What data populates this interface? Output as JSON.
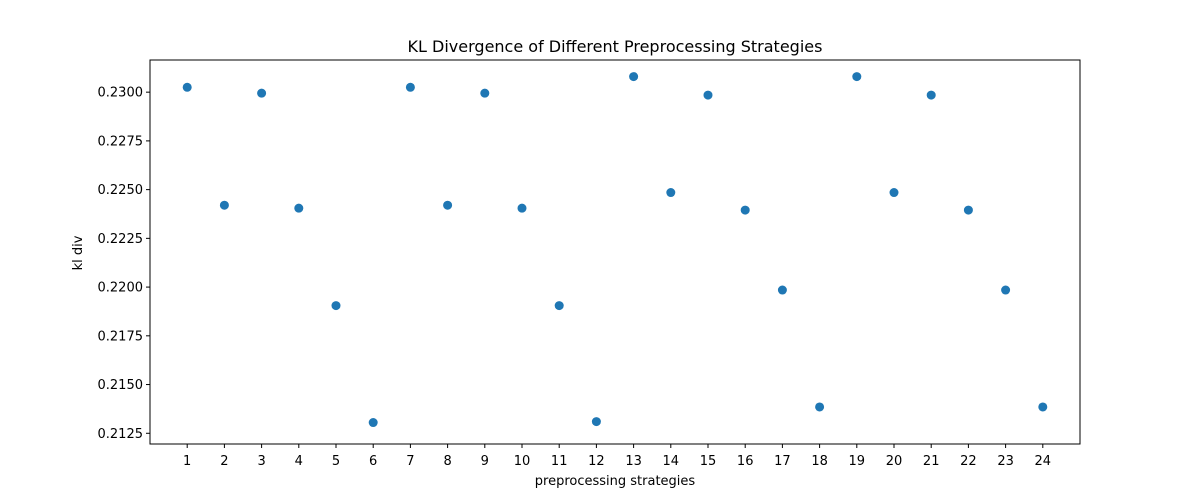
{
  "chart_data": {
    "type": "scatter",
    "title": "KL Divergence of Different Preprocessing Strategies",
    "xlabel": "preprocessing strategies",
    "ylabel": "kl div",
    "x": [
      1,
      2,
      3,
      4,
      5,
      6,
      7,
      8,
      9,
      10,
      11,
      12,
      13,
      14,
      15,
      16,
      17,
      18,
      19,
      20,
      21,
      22,
      23,
      24
    ],
    "y": [
      0.23025,
      0.2242,
      0.22995,
      0.22405,
      0.21905,
      0.21305,
      0.23025,
      0.2242,
      0.22995,
      0.22405,
      0.21905,
      0.2131,
      0.2308,
      0.22485,
      0.22985,
      0.22395,
      0.21985,
      0.21385,
      0.2308,
      0.22485,
      0.22985,
      0.22395,
      0.21985,
      0.21385
    ],
    "xlim": [
      0,
      25
    ],
    "ylim": [
      0.21195,
      0.23165
    ],
    "x_ticks": [
      "1",
      "2",
      "3",
      "4",
      "5",
      "6",
      "7",
      "8",
      "9",
      "10",
      "11",
      "12",
      "13",
      "14",
      "15",
      "16",
      "17",
      "18",
      "19",
      "20",
      "21",
      "22",
      "23",
      "24"
    ],
    "y_ticks": [
      "0.2125",
      "0.2150",
      "0.2175",
      "0.2200",
      "0.2225",
      "0.2250",
      "0.2275",
      "0.2300"
    ],
    "grid": false,
    "marker_color": "#1f77b4"
  }
}
